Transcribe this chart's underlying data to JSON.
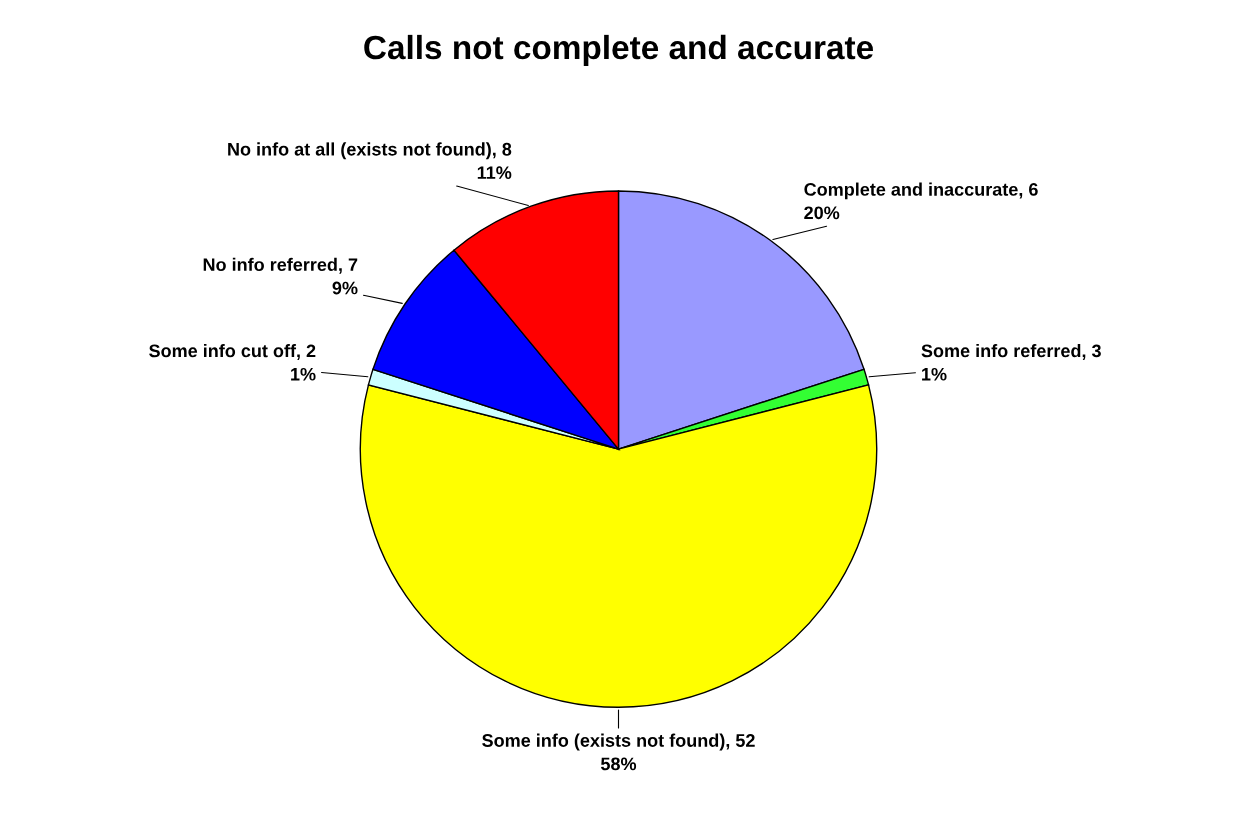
{
  "chart_data": {
    "type": "pie",
    "title": "Calls not complete and accurate",
    "categories": [
      "Complete and inaccurate, 6",
      "Some info referred, 3",
      "Some info (exists not found), 52",
      "Some info cut off, 2",
      "No info referred, 7",
      "No info at all (exists not found), 8"
    ],
    "values": [
      20,
      1,
      58,
      1,
      9,
      11
    ],
    "value_labels": [
      "20%",
      "1%",
      "58%",
      "1%",
      "9%",
      "11%"
    ],
    "colors": [
      "#9999ff",
      "#33ff33",
      "#ffff00",
      "#ccffff",
      "#0000ff",
      "#ff0000"
    ],
    "legend": false
  }
}
